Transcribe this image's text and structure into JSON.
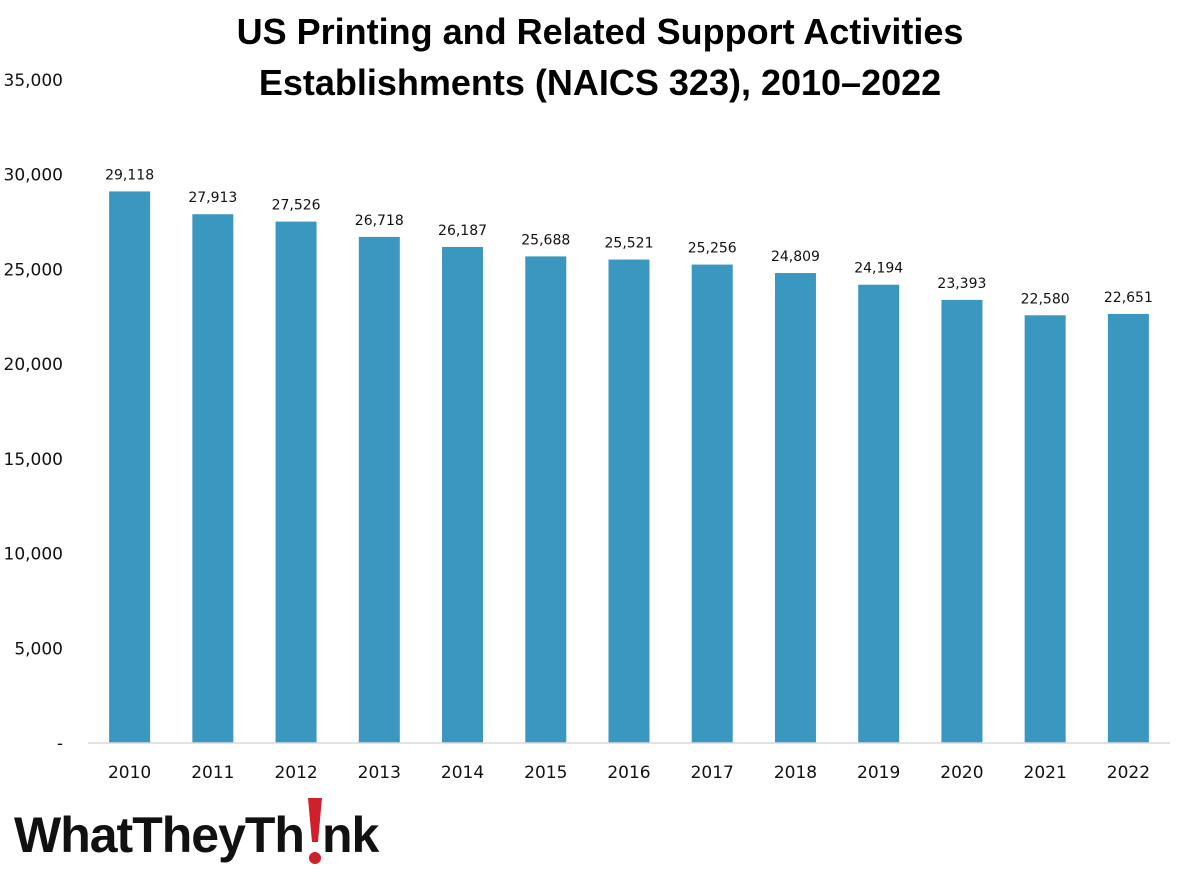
{
  "chart_data": {
    "type": "bar",
    "title_lines": [
      "US Printing and Related Support Activities",
      "Establishments (NAICS 323), 2010–2022"
    ],
    "categories": [
      "2010",
      "2011",
      "2012",
      "2013",
      "2014",
      "2015",
      "2016",
      "2017",
      "2018",
      "2019",
      "2020",
      "2021",
      "2022"
    ],
    "values": [
      29118,
      27913,
      27526,
      26718,
      26187,
      25688,
      25521,
      25256,
      24809,
      24194,
      23393,
      22580,
      22651
    ],
    "value_labels": [
      "29,118",
      "27,913",
      "27,526",
      "26,718",
      "26,187",
      "25,688",
      "25,521",
      "25,256",
      "24,809",
      "24,194",
      "23,393",
      "22,580",
      "22,651"
    ],
    "ylim": [
      0,
      35000
    ],
    "yticks": [
      0,
      5000,
      10000,
      15000,
      20000,
      25000,
      30000,
      35000
    ],
    "ytick_labels": [
      "-",
      "5,000",
      "10,000",
      "15,000",
      "20,000",
      "25,000",
      "30,000",
      "35,000"
    ],
    "xlabel": "",
    "ylabel": "",
    "grid": false,
    "legend": "none",
    "bar_color": "#3a97c0"
  },
  "logo": {
    "text": "WhatTheyThink",
    "part1": "WhatTheyTh",
    "part2": "nk",
    "accent_color": "#d0202c"
  }
}
